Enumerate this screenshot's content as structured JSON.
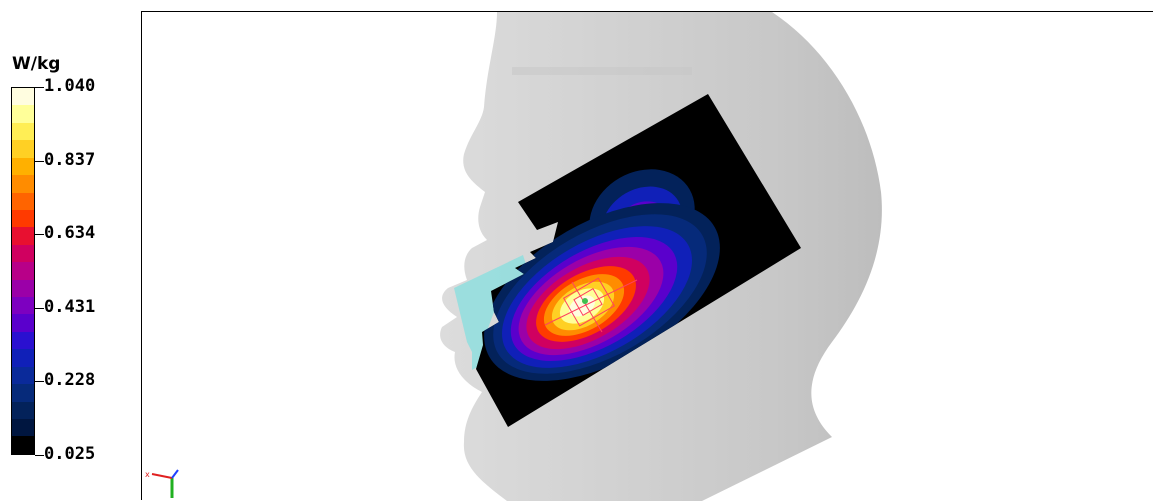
{
  "chart_data": {
    "type": "heatmap",
    "title": "",
    "colorbar": {
      "unit": "W/kg",
      "min": 0.025,
      "max": 1.04,
      "tick_labels": [
        "1.040",
        "0.837",
        "0.634",
        "0.431",
        "0.228",
        "0.025"
      ],
      "tick_values": [
        1.04,
        0.837,
        0.634,
        0.431,
        0.228,
        0.025
      ],
      "colors": [
        "#fffde0",
        "#ffff99",
        "#ffee55",
        "#ffd024",
        "#ffb000",
        "#ff8c00",
        "#ff6400",
        "#ff3a00",
        "#e81030",
        "#d00060",
        "#b80088",
        "#9b00a8",
        "#7d00c0",
        "#5a00cc",
        "#2a10d0",
        "#1020b8",
        "#0a2a9a",
        "#062a7a",
        "#03225a",
        "#001640",
        "#000000"
      ]
    },
    "peak_location": "cheek"
  }
}
